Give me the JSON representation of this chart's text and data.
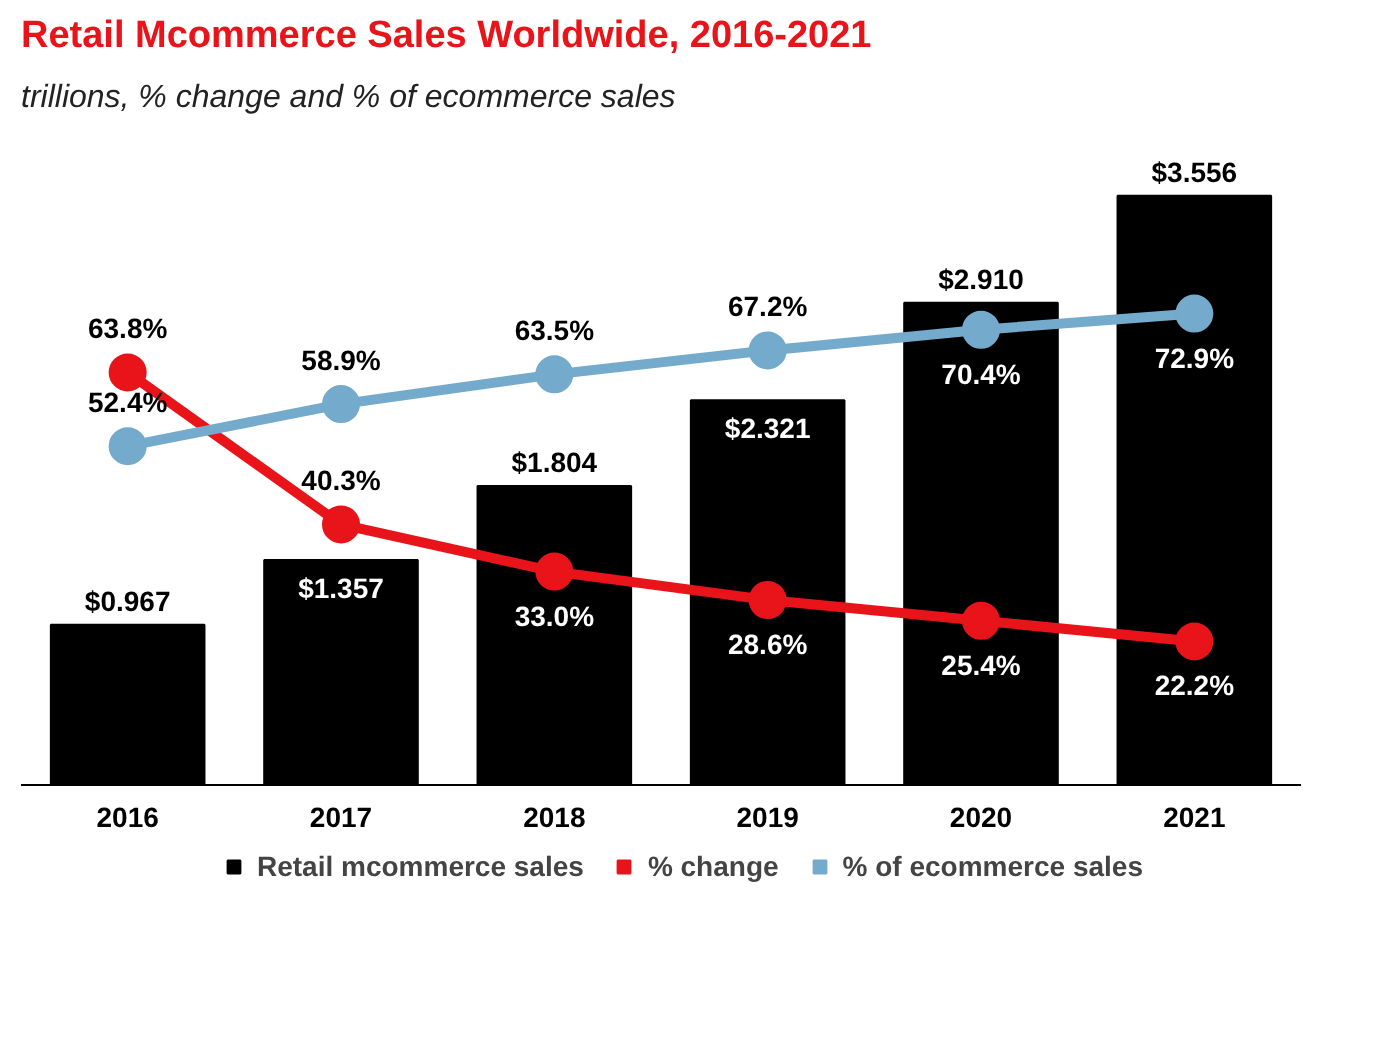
{
  "chart_data": {
    "type": "bar",
    "title": "Retail Mcommerce Sales Worldwide, 2016-2021",
    "subtitle": "trillions, % change and % of ecommerce sales",
    "categories": [
      "2016",
      "2017",
      "2018",
      "2019",
      "2020",
      "2021"
    ],
    "tick_labels": "x",
    "legend": "bottom",
    "series": [
      {
        "name": "Retail mcommerce sales",
        "color": "#000000",
        "values": [
          0.967,
          1.357,
          1.804,
          2.321,
          2.91,
          3.556
        ],
        "value_labels": [
          "$0.967",
          "$1.357",
          "$1.804",
          "$2.321",
          "$2.910",
          "$3.556"
        ]
      },
      {
        "name": "% change",
        "type": "line",
        "axis": "y2",
        "color": "#e8141a",
        "marker": "circle",
        "values": [
          63.8,
          40.3,
          33.0,
          28.6,
          25.4,
          22.2
        ],
        "value_labels": [
          "63.8%",
          "40.3%",
          "33.0%",
          "28.6%",
          "25.4%",
          "22.2%"
        ]
      },
      {
        "name": "% of ecommerce sales",
        "type": "line",
        "axis": "y2",
        "color": "#74aacb",
        "marker": "circle",
        "values": [
          52.4,
          58.9,
          63.5,
          67.2,
          70.4,
          72.9
        ],
        "value_labels": [
          "52.4%",
          "58.9%",
          "63.5%",
          "67.2%",
          "70.4%",
          "72.9%"
        ]
      }
    ]
  }
}
